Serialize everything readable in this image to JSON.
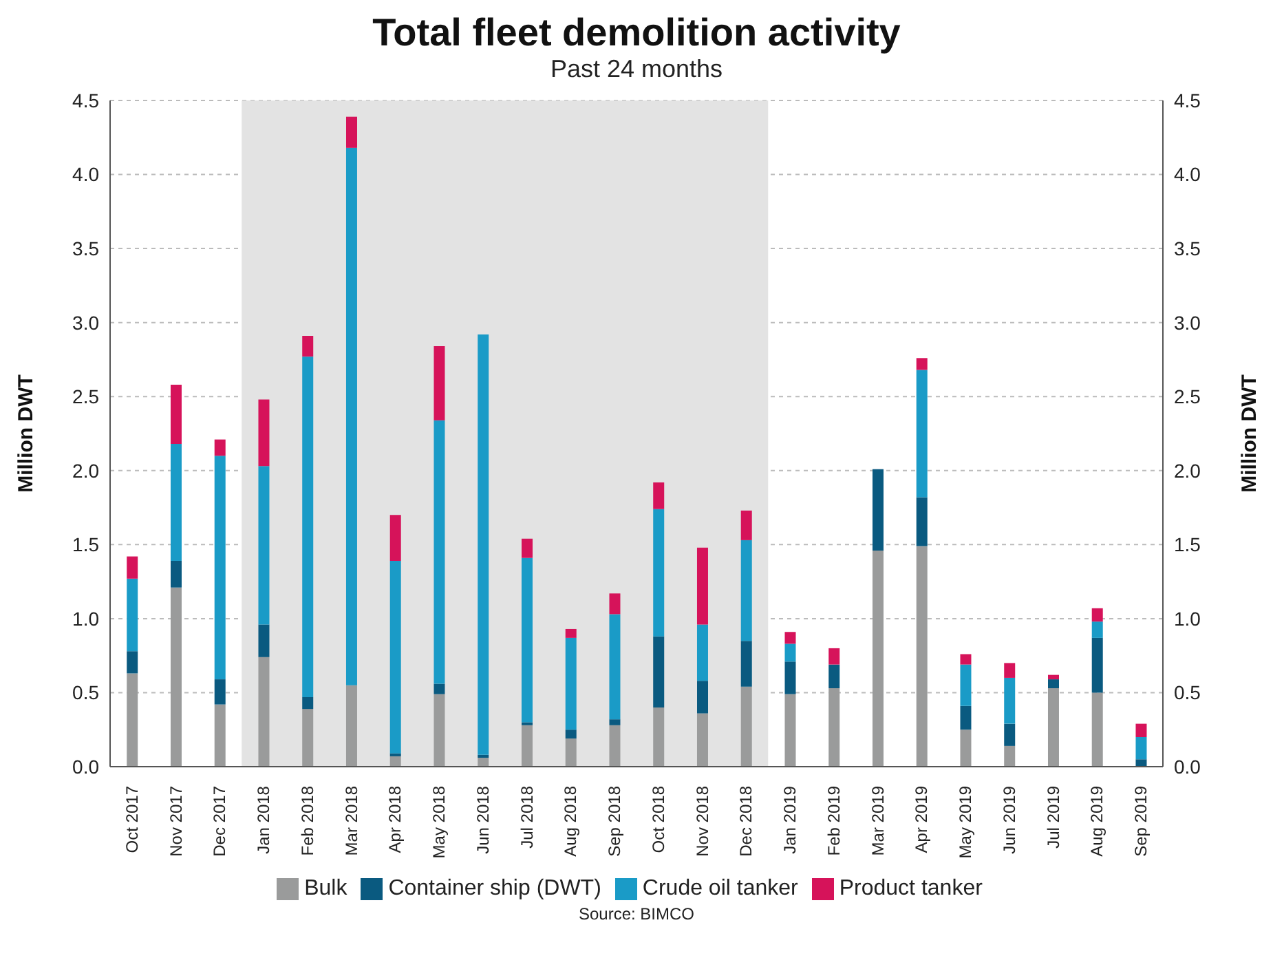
{
  "chart_data": {
    "type": "bar",
    "title": "Total fleet demolition activity",
    "subtitle": "Past 24 months",
    "ylabel": "Million DWT",
    "y2label": "Million DWT",
    "stacked": true,
    "categories": [
      "Oct 2017",
      "Nov 2017",
      "Dec 2017",
      "Jan 2018",
      "Feb 2018",
      "Mar 2018",
      "Apr 2018",
      "May 2018",
      "Jun 2018",
      "Jul 2018",
      "Aug 2018",
      "Sep 2018",
      "Oct 2018",
      "Nov 2018",
      "Dec 2018",
      "Jan 2019",
      "Feb 2019",
      "Mar 2019",
      "Apr 2019",
      "May 2019",
      "Jun 2019",
      "Jul 2019",
      "Aug 2019",
      "Sep 2019"
    ],
    "series": [
      {
        "name": "Bulk",
        "color": "#9a9b9b",
        "values": [
          0.63,
          1.21,
          0.42,
          0.74,
          0.39,
          0.55,
          0.07,
          0.49,
          0.06,
          0.28,
          0.19,
          0.28,
          0.4,
          0.36,
          0.54,
          0.49,
          0.53,
          1.46,
          1.49,
          0.25,
          0.14,
          0.53,
          0.5,
          0
        ]
      },
      {
        "name": "Container ship (DWT)",
        "color": "#0a5a80",
        "values": [
          0.15,
          0.18,
          0.17,
          0.22,
          0.08,
          0,
          0.02,
          0.07,
          0.02,
          0.02,
          0.06,
          0.04,
          0.48,
          0.22,
          0.31,
          0.22,
          0.16,
          0.55,
          0.33,
          0.16,
          0.15,
          0.06,
          0.37,
          0.05
        ]
      },
      {
        "name": "Crude oil tanker",
        "color": "#1a9bc7",
        "values": [
          0.49,
          0.79,
          1.51,
          1.07,
          2.3,
          3.63,
          1.3,
          1.78,
          2.84,
          1.11,
          0.62,
          0.71,
          0.86,
          0.38,
          0.68,
          0.12,
          0,
          0,
          0.86,
          0.28,
          0.31,
          0,
          0.11,
          0.15
        ]
      },
      {
        "name": "Product tanker",
        "color": "#d6135a",
        "values": [
          0.15,
          0.4,
          0.11,
          0.45,
          0.14,
          0.21,
          0.31,
          0.5,
          0,
          0.13,
          0.06,
          0.14,
          0.18,
          0.52,
          0.2,
          0.08,
          0.11,
          0,
          0.08,
          0.07,
          0.1,
          0.03,
          0.09,
          0.09
        ]
      }
    ],
    "ylim": [
      0,
      4.5
    ],
    "yticks": [
      {
        "value": 0,
        "label": "0.0"
      },
      {
        "value": 0.5,
        "label": "0.5"
      },
      {
        "value": 1,
        "label": "1.0"
      },
      {
        "value": 1.5,
        "label": "1.5"
      },
      {
        "value": 2,
        "label": "2.0"
      },
      {
        "value": 2.5,
        "label": "2.5"
      },
      {
        "value": 3,
        "label": "3.0"
      },
      {
        "value": 3.5,
        "label": "3.5"
      },
      {
        "value": 4,
        "label": "4.0"
      },
      {
        "value": 4.5,
        "label": "4.5"
      }
    ],
    "y2lim": [
      0,
      4.5
    ],
    "y2ticks": [
      {
        "value": 0,
        "label": "0.0"
      },
      {
        "value": 0.5,
        "label": "0.5"
      },
      {
        "value": 1,
        "label": "1.0"
      },
      {
        "value": 1.5,
        "label": "1.5"
      },
      {
        "value": 2,
        "label": "2.0"
      },
      {
        "value": 2.5,
        "label": "2.5"
      },
      {
        "value": 3,
        "label": "3.0"
      },
      {
        "value": 3.5,
        "label": "3.5"
      },
      {
        "value": 4,
        "label": "4.0"
      },
      {
        "value": 4.5,
        "label": "4.5"
      }
    ],
    "bands": [
      {
        "axis": "x",
        "from": "Jan 2018",
        "to": "Dec 2018",
        "color": "#e3e3e3"
      }
    ],
    "grid": "y",
    "legend": "bottom",
    "annotations": [
      "Source: BIMCO"
    ]
  }
}
